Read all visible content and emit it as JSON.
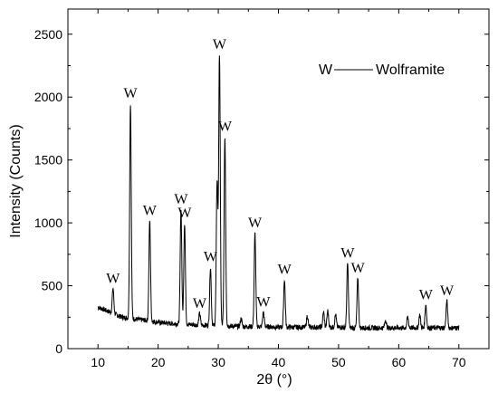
{
  "chart_data": {
    "type": "line",
    "xlabel": "2θ (°)",
    "ylabel": "Intensity (Counts)",
    "xlim": [
      5,
      75
    ],
    "ylim": [
      0,
      2700
    ],
    "x_ticks": [
      10,
      20,
      30,
      40,
      50,
      60,
      70
    ],
    "y_ticks": [
      0,
      500,
      1000,
      1500,
      2000,
      2500
    ],
    "grid": false,
    "legend": {
      "marker": "W",
      "label": "Wolframite",
      "placement": "top-right"
    },
    "background": {
      "x": [
        10,
        12,
        14,
        16,
        18,
        20,
        22,
        24,
        26,
        28,
        30,
        32,
        34,
        36,
        38,
        40,
        42,
        44,
        46,
        48,
        50,
        52,
        54,
        56,
        58,
        60,
        62,
        64,
        66,
        68,
        70
      ],
      "y": [
        330,
        290,
        250,
        235,
        225,
        210,
        200,
        195,
        190,
        185,
        185,
        180,
        175,
        175,
        175,
        170,
        170,
        170,
        170,
        170,
        170,
        165,
        165,
        165,
        165,
        165,
        165,
        165,
        165,
        165,
        165
      ]
    },
    "peaks": [
      {
        "x": 12.5,
        "y": 480,
        "label": "W"
      },
      {
        "x": 15.4,
        "y": 1950,
        "label": "W"
      },
      {
        "x": 18.6,
        "y": 1020,
        "label": "W"
      },
      {
        "x": 23.8,
        "y": 1110,
        "label": "W"
      },
      {
        "x": 24.4,
        "y": 1000,
        "label": "W"
      },
      {
        "x": 26.9,
        "y": 280,
        "label": "W"
      },
      {
        "x": 28.7,
        "y": 650,
        "label": "W"
      },
      {
        "x": 30.2,
        "y": 2340,
        "label": "W"
      },
      {
        "x": 31.1,
        "y": 1690,
        "label": "W"
      },
      {
        "x": 36.1,
        "y": 920,
        "label": "W"
      },
      {
        "x": 37.5,
        "y": 290,
        "label": "W"
      },
      {
        "x": 41.0,
        "y": 550,
        "label": "W"
      },
      {
        "x": 51.5,
        "y": 680,
        "label": "W"
      },
      {
        "x": 53.2,
        "y": 560,
        "label": "W"
      },
      {
        "x": 64.5,
        "y": 350,
        "label": "W"
      },
      {
        "x": 68.0,
        "y": 380,
        "label": "W"
      }
    ],
    "minor_peaks": [
      {
        "x": 29.8,
        "y": 1330
      },
      {
        "x": 33.8,
        "y": 240
      },
      {
        "x": 44.8,
        "y": 260
      },
      {
        "x": 47.5,
        "y": 290
      },
      {
        "x": 48.2,
        "y": 300
      },
      {
        "x": 49.5,
        "y": 270
      },
      {
        "x": 57.8,
        "y": 230
      },
      {
        "x": 61.5,
        "y": 250
      },
      {
        "x": 63.5,
        "y": 270
      }
    ]
  }
}
